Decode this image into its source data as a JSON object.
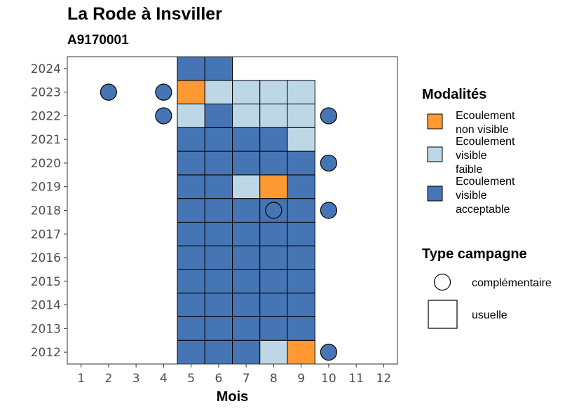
{
  "header": {
    "title": "La Rode à Insviller",
    "subtitle": "A9170001"
  },
  "chart_data": {
    "type": "heatmap",
    "xlabel": "Mois",
    "ylabel": "",
    "x_ticks": [
      1,
      2,
      3,
      4,
      5,
      6,
      7,
      8,
      9,
      10,
      11,
      12
    ],
    "y_ticks": [
      2012,
      2013,
      2014,
      2015,
      2016,
      2017,
      2018,
      2019,
      2020,
      2021,
      2022,
      2023,
      2024
    ],
    "xlim": [
      0.5,
      12.5
    ],
    "ylim": [
      2011.5,
      2024.5
    ],
    "grid": false,
    "legend_position": "right",
    "colors": {
      "non_visible": "#FF9933",
      "faible": "#BDD7E7",
      "acceptable": "#4575B4"
    },
    "legend_modalites": {
      "title": "Modalités",
      "items": [
        {
          "key": "non_visible",
          "lines": [
            "Ecoulement",
            "non visible"
          ]
        },
        {
          "key": "faible",
          "lines": [
            "Ecoulement",
            "visible",
            "faible"
          ]
        },
        {
          "key": "acceptable",
          "lines": [
            "Ecoulement",
            "visible",
            "acceptable"
          ]
        }
      ]
    },
    "legend_campagne": {
      "title": "Type campagne",
      "items": [
        {
          "shape": "circle",
          "label": "complémentaire"
        },
        {
          "shape": "square",
          "label": "usuelle"
        }
      ]
    },
    "usuelle": [
      {
        "year": 2012,
        "months": [
          5,
          6,
          7,
          8,
          9
        ],
        "status": [
          "acceptable",
          "acceptable",
          "acceptable",
          "faible",
          "non_visible"
        ]
      },
      {
        "year": 2013,
        "months": [
          5,
          6,
          7,
          8,
          9
        ],
        "status": [
          "acceptable",
          "acceptable",
          "acceptable",
          "acceptable",
          "acceptable"
        ]
      },
      {
        "year": 2014,
        "months": [
          5,
          6,
          7,
          8,
          9
        ],
        "status": [
          "acceptable",
          "acceptable",
          "acceptable",
          "acceptable",
          "acceptable"
        ]
      },
      {
        "year": 2015,
        "months": [
          5,
          6,
          7,
          8,
          9
        ],
        "status": [
          "acceptable",
          "acceptable",
          "acceptable",
          "acceptable",
          "acceptable"
        ]
      },
      {
        "year": 2016,
        "months": [
          5,
          6,
          7,
          8,
          9
        ],
        "status": [
          "acceptable",
          "acceptable",
          "acceptable",
          "acceptable",
          "acceptable"
        ]
      },
      {
        "year": 2017,
        "months": [
          5,
          6,
          7,
          8,
          9
        ],
        "status": [
          "acceptable",
          "acceptable",
          "acceptable",
          "acceptable",
          "acceptable"
        ]
      },
      {
        "year": 2018,
        "months": [
          5,
          6,
          7,
          8,
          9
        ],
        "status": [
          "acceptable",
          "acceptable",
          "acceptable",
          "acceptable",
          "acceptable"
        ]
      },
      {
        "year": 2019,
        "months": [
          5,
          6,
          7,
          8,
          9
        ],
        "status": [
          "acceptable",
          "acceptable",
          "faible",
          "non_visible",
          "acceptable"
        ]
      },
      {
        "year": 2020,
        "months": [
          5,
          6,
          7,
          8,
          9
        ],
        "status": [
          "acceptable",
          "acceptable",
          "acceptable",
          "acceptable",
          "acceptable"
        ]
      },
      {
        "year": 2021,
        "months": [
          5,
          6,
          7,
          8,
          9
        ],
        "status": [
          "acceptable",
          "acceptable",
          "acceptable",
          "acceptable",
          "faible"
        ]
      },
      {
        "year": 2022,
        "months": [
          5,
          6,
          7,
          8,
          9
        ],
        "status": [
          "faible",
          "acceptable",
          "faible",
          "faible",
          "faible"
        ]
      },
      {
        "year": 2023,
        "months": [
          5,
          6,
          7,
          8,
          9
        ],
        "status": [
          "non_visible",
          "faible",
          "faible",
          "faible",
          "faible"
        ]
      },
      {
        "year": 2024,
        "months": [
          5,
          6
        ],
        "status": [
          "acceptable",
          "acceptable"
        ]
      }
    ],
    "complementaire": [
      {
        "year": 2023,
        "month": 2,
        "status": "acceptable"
      },
      {
        "year": 2023,
        "month": 4,
        "status": "acceptable"
      },
      {
        "year": 2022,
        "month": 4,
        "status": "acceptable"
      },
      {
        "year": 2022,
        "month": 10,
        "status": "acceptable"
      },
      {
        "year": 2020,
        "month": 10,
        "status": "acceptable"
      },
      {
        "year": 2018,
        "month": 8,
        "status": "acceptable"
      },
      {
        "year": 2018,
        "month": 10,
        "status": "acceptable"
      },
      {
        "year": 2012,
        "month": 10,
        "status": "acceptable"
      }
    ]
  }
}
